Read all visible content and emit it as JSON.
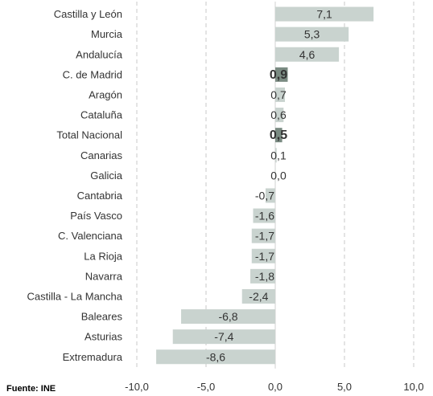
{
  "chart_data": {
    "type": "bar",
    "orientation": "horizontal",
    "categories": [
      "Castilla y León",
      "Murcia",
      "Andalucía",
      "C. de Madrid",
      "Aragón",
      "Cataluña",
      "Total Nacional",
      "Canarias",
      "Galicia",
      "Cantabria",
      "País Vasco",
      "C. Valenciana",
      "La Rioja",
      "Navarra",
      "Castilla - La Mancha",
      "Baleares",
      "Asturias",
      "Extremadura"
    ],
    "values": [
      7.1,
      5.3,
      4.6,
      0.9,
      0.7,
      0.6,
      0.5,
      0.1,
      0.0,
      -0.7,
      -1.6,
      -1.7,
      -1.7,
      -1.8,
      -2.4,
      -6.8,
      -7.4,
      -8.6
    ],
    "value_labels": [
      "7,1",
      "5,3",
      "4,6",
      "0,9",
      "0,7",
      "0,6",
      "0,5",
      "0,1",
      "0,0",
      "-0,7",
      "-1,6",
      "-1,7",
      "-1,7",
      "-1,8",
      "-2,4",
      "-6,8",
      "-7,4",
      "-8,6"
    ],
    "highlighted": [
      "C. de Madrid",
      "Total Nacional"
    ],
    "xlim": [
      -10,
      10
    ],
    "xticks": [
      -10,
      -5,
      0,
      5,
      10
    ],
    "xtick_labels": [
      "-10,0",
      "-5,0",
      "0,0",
      "5,0",
      "10,0"
    ],
    "grid": "vertical dashed",
    "colors": {
      "bar": "#c9d3cf",
      "bar_highlight": "#7a8b82",
      "grid": "#c8c8c8",
      "text": "#333333"
    }
  },
  "source_label": "Fuente: INE"
}
